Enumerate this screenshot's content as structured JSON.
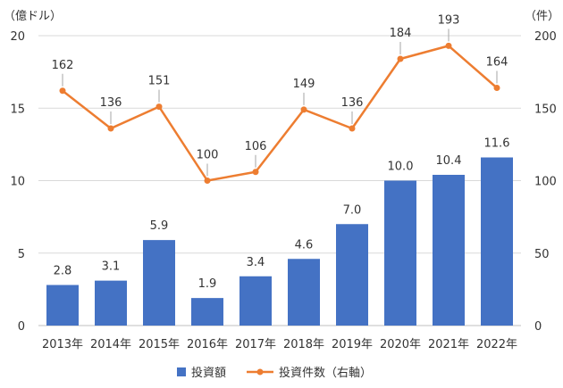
{
  "chart_data": {
    "type": "bar+line",
    "categories": [
      "2013年",
      "2014年",
      "2015年",
      "2016年",
      "2017年",
      "2018年",
      "2019年",
      "2020年",
      "2021年",
      "2022年"
    ],
    "left_axis": {
      "unit": "（億ドル）",
      "ylim": [
        0,
        20
      ],
      "ticks": [
        0,
        5,
        10,
        15,
        20
      ]
    },
    "right_axis": {
      "unit": "（件）",
      "ylim": [
        0,
        200
      ],
      "ticks": [
        0,
        50,
        100,
        150,
        200
      ]
    },
    "series": [
      {
        "name": "投資額",
        "type": "bar",
        "axis": "left",
        "color": "#4472C4",
        "values": [
          2.8,
          3.1,
          5.9,
          1.9,
          3.4,
          4.6,
          7.0,
          10.0,
          10.4,
          11.6
        ],
        "labels": [
          "2.8",
          "3.1",
          "5.9",
          "1.9",
          "3.4",
          "4.6",
          "7.0",
          "10.0",
          "10.4",
          "11.6"
        ]
      },
      {
        "name": "投資件数（右軸）",
        "type": "line",
        "axis": "right",
        "color": "#ED7D31",
        "values": [
          162,
          136,
          151,
          100,
          106,
          149,
          136,
          184,
          193,
          164
        ],
        "labels": [
          "162",
          "136",
          "151",
          "100",
          "106",
          "149",
          "136",
          "184",
          "193",
          "164"
        ]
      }
    ],
    "grid": true,
    "legend_position": "bottom"
  }
}
